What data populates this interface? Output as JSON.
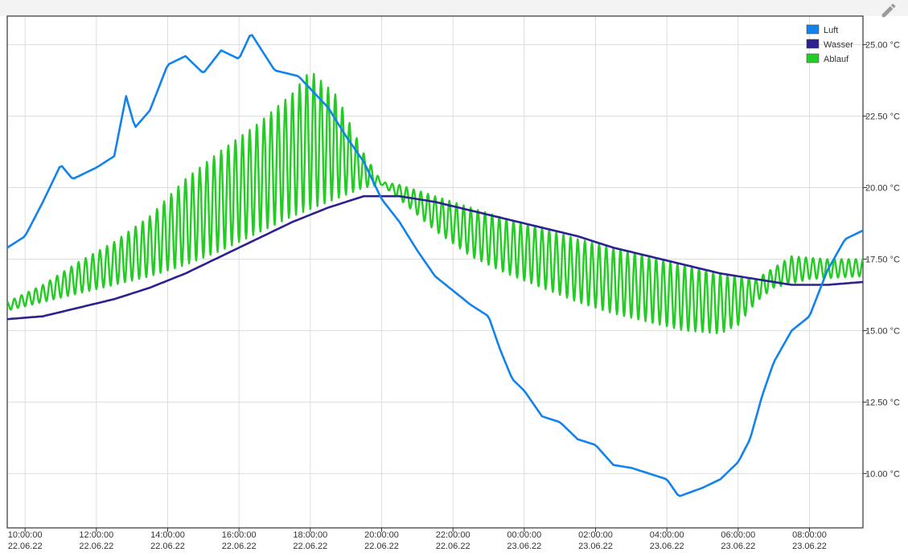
{
  "toolbar": {
    "edit_icon": "pencil-icon"
  },
  "chart_data": {
    "type": "line",
    "title": "",
    "xlabel": "",
    "ylabel": "",
    "x_range": [
      "2022-06-22T09:30:00",
      "2022-06-23T09:30:00"
    ],
    "ylim": [
      8.1,
      26.0
    ],
    "grid": true,
    "legend_position": "top-right",
    "x_ticks": [
      {
        "time": "10:00:00",
        "date": "22.06.22",
        "t": "2022-06-22T10:00:00"
      },
      {
        "time": "12:00:00",
        "date": "22.06.22",
        "t": "2022-06-22T12:00:00"
      },
      {
        "time": "14:00:00",
        "date": "22.06.22",
        "t": "2022-06-22T14:00:00"
      },
      {
        "time": "16:00:00",
        "date": "22.06.22",
        "t": "2022-06-22T16:00:00"
      },
      {
        "time": "18:00:00",
        "date": "22.06.22",
        "t": "2022-06-22T18:00:00"
      },
      {
        "time": "20:00:00",
        "date": "22.06.22",
        "t": "2022-06-22T20:00:00"
      },
      {
        "time": "22:00:00",
        "date": "22.06.22",
        "t": "2022-06-22T22:00:00"
      },
      {
        "time": "00:00:00",
        "date": "23.06.22",
        "t": "2022-06-23T00:00:00"
      },
      {
        "time": "02:00:00",
        "date": "23.06.22",
        "t": "2022-06-23T02:00:00"
      },
      {
        "time": "04:00:00",
        "date": "23.06.22",
        "t": "2022-06-23T04:00:00"
      },
      {
        "time": "06:00:00",
        "date": "23.06.22",
        "t": "2022-06-23T06:00:00"
      },
      {
        "time": "08:00:00",
        "date": "23.06.22",
        "t": "2022-06-23T08:00:00"
      }
    ],
    "y_ticks": [
      {
        "value": 10.0,
        "label": "10.00 °C"
      },
      {
        "value": 12.5,
        "label": "12.50 °C"
      },
      {
        "value": 15.0,
        "label": "15.00 °C"
      },
      {
        "value": 17.5,
        "label": "17.50 °C"
      },
      {
        "value": 20.0,
        "label": "20.00 °C"
      },
      {
        "value": 22.5,
        "label": "22.50 °C"
      },
      {
        "value": 25.0,
        "label": "25.00 °C"
      }
    ],
    "series": [
      {
        "name": "Luft",
        "color": "#1183eb",
        "points": [
          [
            "2022-06-22T09:30:00",
            17.9
          ],
          [
            "2022-06-22T10:00:00",
            18.3
          ],
          [
            "2022-06-22T10:30:00",
            19.5
          ],
          [
            "2022-06-22T11:00:00",
            20.8
          ],
          [
            "2022-06-22T11:20:00",
            20.3
          ],
          [
            "2022-06-22T12:00:00",
            20.7
          ],
          [
            "2022-06-22T12:30:00",
            21.1
          ],
          [
            "2022-06-22T12:50:00",
            23.2
          ],
          [
            "2022-06-22T13:05:00",
            22.1
          ],
          [
            "2022-06-22T13:30:00",
            22.7
          ],
          [
            "2022-06-22T14:00:00",
            24.3
          ],
          [
            "2022-06-22T14:30:00",
            24.6
          ],
          [
            "2022-06-22T15:00:00",
            24.0
          ],
          [
            "2022-06-22T15:30:00",
            24.8
          ],
          [
            "2022-06-22T16:00:00",
            24.5
          ],
          [
            "2022-06-22T16:20:00",
            25.4
          ],
          [
            "2022-06-22T17:00:00",
            24.1
          ],
          [
            "2022-06-22T17:40:00",
            23.9
          ],
          [
            "2022-06-22T18:30:00",
            22.8
          ],
          [
            "2022-06-22T19:00:00",
            21.8
          ],
          [
            "2022-06-22T19:30:00",
            20.9
          ],
          [
            "2022-06-22T20:00:00",
            19.6
          ],
          [
            "2022-06-22T20:30:00",
            18.8
          ],
          [
            "2022-06-22T21:00:00",
            17.8
          ],
          [
            "2022-06-22T21:30:00",
            16.9
          ],
          [
            "2022-06-22T22:00:00",
            16.4
          ],
          [
            "2022-06-22T22:30:00",
            15.9
          ],
          [
            "2022-06-22T23:00:00",
            15.5
          ],
          [
            "2022-06-22T23:20:00",
            14.3
          ],
          [
            "2022-06-22T23:40:00",
            13.3
          ],
          [
            "2022-06-23T00:00:00",
            12.9
          ],
          [
            "2022-06-23T00:30:00",
            12.0
          ],
          [
            "2022-06-23T01:00:00",
            11.8
          ],
          [
            "2022-06-23T01:30:00",
            11.2
          ],
          [
            "2022-06-23T02:00:00",
            11.0
          ],
          [
            "2022-06-23T02:30:00",
            10.3
          ],
          [
            "2022-06-23T03:00:00",
            10.2
          ],
          [
            "2022-06-23T03:30:00",
            10.0
          ],
          [
            "2022-06-23T04:00:00",
            9.8
          ],
          [
            "2022-06-23T04:20:00",
            9.2
          ],
          [
            "2022-06-23T05:00:00",
            9.5
          ],
          [
            "2022-06-23T05:30:00",
            9.8
          ],
          [
            "2022-06-23T06:00:00",
            10.4
          ],
          [
            "2022-06-23T06:20:00",
            11.2
          ],
          [
            "2022-06-23T06:40:00",
            12.7
          ],
          [
            "2022-06-23T07:00:00",
            13.9
          ],
          [
            "2022-06-23T07:30:00",
            15.0
          ],
          [
            "2022-06-23T08:00:00",
            15.5
          ],
          [
            "2022-06-23T08:30:00",
            17.1
          ],
          [
            "2022-06-23T09:00:00",
            18.2
          ],
          [
            "2022-06-23T09:30:00",
            18.5
          ]
        ]
      },
      {
        "name": "Wasser",
        "color": "#2c2191",
        "points": [
          [
            "2022-06-22T09:30:00",
            15.4
          ],
          [
            "2022-06-22T10:30:00",
            15.5
          ],
          [
            "2022-06-22T11:30:00",
            15.8
          ],
          [
            "2022-06-22T12:30:00",
            16.1
          ],
          [
            "2022-06-22T13:30:00",
            16.5
          ],
          [
            "2022-06-22T14:30:00",
            17.0
          ],
          [
            "2022-06-22T15:30:00",
            17.6
          ],
          [
            "2022-06-22T16:30:00",
            18.2
          ],
          [
            "2022-06-22T17:30:00",
            18.8
          ],
          [
            "2022-06-22T18:30:00",
            19.3
          ],
          [
            "2022-06-22T19:30:00",
            19.7
          ],
          [
            "2022-06-22T20:30:00",
            19.7
          ],
          [
            "2022-06-22T21:30:00",
            19.5
          ],
          [
            "2022-06-22T22:30:00",
            19.2
          ],
          [
            "2022-06-22T23:30:00",
            18.9
          ],
          [
            "2022-06-23T00:30:00",
            18.6
          ],
          [
            "2022-06-23T01:30:00",
            18.3
          ],
          [
            "2022-06-23T02:30:00",
            17.9
          ],
          [
            "2022-06-23T03:30:00",
            17.6
          ],
          [
            "2022-06-23T04:30:00",
            17.3
          ],
          [
            "2022-06-23T05:30:00",
            17.0
          ],
          [
            "2022-06-23T06:30:00",
            16.8
          ],
          [
            "2022-06-23T07:30:00",
            16.6
          ],
          [
            "2022-06-23T08:30:00",
            16.6
          ],
          [
            "2022-06-23T09:30:00",
            16.7
          ]
        ]
      },
      {
        "name": "Ablauf",
        "color": "#22cc22",
        "oscillation": {
          "period_minutes": 12,
          "phase_start": "2022-06-22T09:30:00",
          "peak_first": true
        },
        "envelope_high": [
          [
            "2022-06-22T09:30:00",
            16.0
          ],
          [
            "2022-06-22T10:30:00",
            16.6
          ],
          [
            "2022-06-22T11:30:00",
            17.4
          ],
          [
            "2022-06-22T12:30:00",
            18.1
          ],
          [
            "2022-06-22T13:30:00",
            19.0
          ],
          [
            "2022-06-22T14:30:00",
            20.3
          ],
          [
            "2022-06-22T15:30:00",
            21.3
          ],
          [
            "2022-06-22T16:30:00",
            22.2
          ],
          [
            "2022-06-22T17:30:00",
            23.3
          ],
          [
            "2022-06-22T18:00:00",
            24.1
          ],
          [
            "2022-06-22T18:45:00",
            23.2
          ],
          [
            "2022-06-22T19:30:00",
            21.2
          ],
          [
            "2022-06-22T20:00:00",
            20.2
          ],
          [
            "2022-06-22T20:30:00",
            20.1
          ],
          [
            "2022-06-22T21:30:00",
            19.7
          ],
          [
            "2022-06-22T22:30:00",
            19.3
          ],
          [
            "2022-06-22T23:30:00",
            18.9
          ],
          [
            "2022-06-23T00:30:00",
            18.6
          ],
          [
            "2022-06-23T01:30:00",
            18.2
          ],
          [
            "2022-06-23T02:30:00",
            17.9
          ],
          [
            "2022-06-23T03:30:00",
            17.6
          ],
          [
            "2022-06-23T04:30:00",
            17.3
          ],
          [
            "2022-06-23T05:30:00",
            17.0
          ],
          [
            "2022-06-23T06:30:00",
            16.8
          ],
          [
            "2022-06-23T07:30:00",
            17.6
          ],
          [
            "2022-06-23T08:30:00",
            17.5
          ],
          [
            "2022-06-23T09:30:00",
            17.5
          ]
        ],
        "envelope_low": [
          [
            "2022-06-22T09:30:00",
            15.7
          ],
          [
            "2022-06-22T10:30:00",
            16.0
          ],
          [
            "2022-06-22T11:30:00",
            16.3
          ],
          [
            "2022-06-22T12:30:00",
            16.6
          ],
          [
            "2022-06-22T13:30:00",
            16.9
          ],
          [
            "2022-06-22T14:30:00",
            17.3
          ],
          [
            "2022-06-22T15:30:00",
            17.8
          ],
          [
            "2022-06-22T16:30:00",
            18.4
          ],
          [
            "2022-06-22T17:30:00",
            19.0
          ],
          [
            "2022-06-22T18:30:00",
            19.5
          ],
          [
            "2022-06-22T19:30:00",
            20.0
          ],
          [
            "2022-06-22T20:00:00",
            20.1
          ],
          [
            "2022-06-22T20:30:00",
            19.6
          ],
          [
            "2022-06-22T21:30:00",
            18.5
          ],
          [
            "2022-06-22T22:30:00",
            17.6
          ],
          [
            "2022-06-22T23:30:00",
            17.0
          ],
          [
            "2022-06-23T00:30:00",
            16.5
          ],
          [
            "2022-06-23T01:30:00",
            16.0
          ],
          [
            "2022-06-23T02:30:00",
            15.6
          ],
          [
            "2022-06-23T03:30:00",
            15.3
          ],
          [
            "2022-06-23T04:30:00",
            15.0
          ],
          [
            "2022-06-23T05:30:00",
            14.9
          ],
          [
            "2022-06-23T06:00:00",
            15.2
          ],
          [
            "2022-06-23T06:30:00",
            16.0
          ],
          [
            "2022-06-23T07:00:00",
            16.5
          ],
          [
            "2022-06-23T08:00:00",
            16.8
          ],
          [
            "2022-06-23T09:30:00",
            16.9
          ]
        ]
      }
    ]
  }
}
